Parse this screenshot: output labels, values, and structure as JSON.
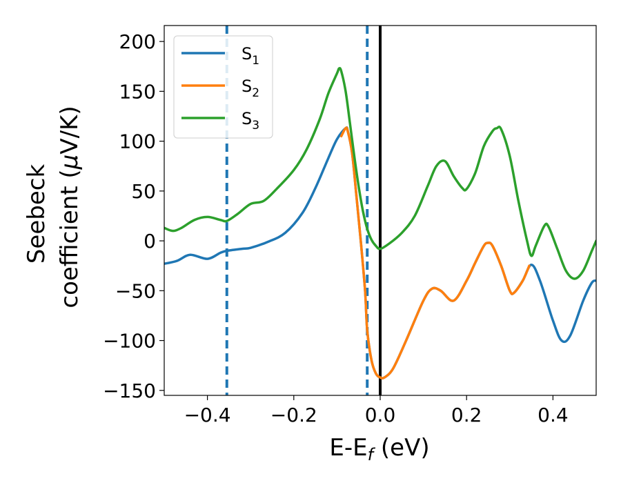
{
  "chart_data": {
    "type": "line",
    "xlabel_main": "E-E",
    "xlabel_sub": "f",
    "xlabel_unit": " (eV)",
    "ylabel_line1": "Seebeck",
    "ylabel_line2_pre": "coefficient  (",
    "ylabel_line2_mu": "μ",
    "ylabel_line2_post": "V/K)",
    "xlim": [
      -0.5,
      0.5
    ],
    "ylim": [
      -155,
      216
    ],
    "x_ticks": [
      -0.4,
      -0.2,
      0.0,
      0.2,
      0.4
    ],
    "x_tick_labels": [
      "−0.4",
      "−0.2",
      "0.0",
      "0.2",
      "0.4"
    ],
    "y_ticks": [
      -150,
      -100,
      -50,
      0,
      50,
      100,
      150,
      200
    ],
    "y_tick_labels": [
      "−150",
      "−100",
      "−50",
      "0",
      "50",
      "100",
      "150",
      "200"
    ],
    "grid": false,
    "legend_position": "top-left",
    "vertical_lines": [
      {
        "x": -0.355,
        "style": "dashed",
        "color": "#1f77b4"
      },
      {
        "x": -0.03,
        "style": "dashed",
        "color": "#1f77b4"
      },
      {
        "x": 0.0,
        "style": "solid",
        "color": "#000000"
      }
    ],
    "series": [
      {
        "name": "S",
        "name_sub": "1",
        "color": "#1f77b4",
        "points": [
          [
            -0.5,
            -23
          ],
          [
            -0.47,
            -20
          ],
          [
            -0.44,
            -14
          ],
          [
            -0.4,
            -18
          ],
          [
            -0.37,
            -12
          ],
          [
            -0.355,
            -10
          ],
          [
            -0.32,
            -8
          ],
          [
            -0.3,
            -7
          ],
          [
            -0.26,
            -1
          ],
          [
            -0.22,
            8
          ],
          [
            -0.18,
            28
          ],
          [
            -0.15,
            53
          ],
          [
            -0.12,
            83
          ],
          [
            -0.1,
            102
          ],
          [
            -0.08,
            113
          ],
          [
            -0.075,
            110
          ],
          [
            -0.065,
            88
          ],
          [
            -0.055,
            45
          ],
          [
            -0.045,
            0
          ],
          [
            -0.035,
            -50
          ],
          [
            -0.03,
            -90
          ],
          [
            -0.02,
            -120
          ],
          [
            -0.01,
            -133
          ],
          [
            0.0,
            -137
          ],
          [
            0.01,
            -137
          ],
          [
            0.03,
            -128
          ],
          [
            0.06,
            -100
          ],
          [
            0.1,
            -60
          ],
          [
            0.12,
            -48
          ],
          [
            0.14,
            -50
          ],
          [
            0.17,
            -60
          ],
          [
            0.2,
            -40
          ],
          [
            0.22,
            -22
          ],
          [
            0.24,
            -5
          ],
          [
            0.25,
            -2
          ],
          [
            0.26,
            -5
          ],
          [
            0.28,
            -25
          ],
          [
            0.3,
            -50
          ],
          [
            0.31,
            -52
          ],
          [
            0.33,
            -40
          ],
          [
            0.35,
            -24
          ],
          [
            0.37,
            -40
          ],
          [
            0.4,
            -80
          ],
          [
            0.42,
            -100
          ],
          [
            0.44,
            -95
          ],
          [
            0.47,
            -60
          ],
          [
            0.49,
            -42
          ],
          [
            0.5,
            -40
          ]
        ]
      },
      {
        "name": "S",
        "name_sub": "2",
        "color": "#ff7f0e",
        "points": [
          [
            -0.09,
            105
          ],
          [
            -0.08,
            113
          ],
          [
            -0.075,
            110
          ],
          [
            -0.065,
            88
          ],
          [
            -0.055,
            45
          ],
          [
            -0.045,
            0
          ],
          [
            -0.035,
            -50
          ],
          [
            -0.03,
            -90
          ],
          [
            -0.02,
            -120
          ],
          [
            -0.01,
            -133
          ],
          [
            0.0,
            -137
          ],
          [
            0.01,
            -137
          ],
          [
            0.03,
            -128
          ],
          [
            0.06,
            -100
          ],
          [
            0.1,
            -60
          ],
          [
            0.12,
            -48
          ],
          [
            0.14,
            -50
          ],
          [
            0.17,
            -60
          ],
          [
            0.2,
            -40
          ],
          [
            0.22,
            -22
          ],
          [
            0.24,
            -5
          ],
          [
            0.25,
            -2
          ],
          [
            0.26,
            -5
          ],
          [
            0.28,
            -25
          ],
          [
            0.3,
            -50
          ],
          [
            0.31,
            -52
          ],
          [
            0.33,
            -40
          ],
          [
            0.345,
            -25
          ]
        ]
      },
      {
        "name": "S",
        "name_sub": "3",
        "color": "#2ca02c",
        "points": [
          [
            -0.5,
            13
          ],
          [
            -0.48,
            10
          ],
          [
            -0.46,
            13
          ],
          [
            -0.43,
            21
          ],
          [
            -0.4,
            24
          ],
          [
            -0.37,
            21
          ],
          [
            -0.355,
            20
          ],
          [
            -0.33,
            27
          ],
          [
            -0.3,
            37
          ],
          [
            -0.27,
            40
          ],
          [
            -0.24,
            52
          ],
          [
            -0.2,
            71
          ],
          [
            -0.17,
            92
          ],
          [
            -0.14,
            122
          ],
          [
            -0.12,
            148
          ],
          [
            -0.1,
            168
          ],
          [
            -0.095,
            173
          ],
          [
            -0.09,
            170
          ],
          [
            -0.08,
            150
          ],
          [
            -0.07,
            118
          ],
          [
            -0.06,
            85
          ],
          [
            -0.05,
            55
          ],
          [
            -0.04,
            30
          ],
          [
            -0.03,
            12
          ],
          [
            -0.02,
            1
          ],
          [
            -0.01,
            -5
          ],
          [
            0.0,
            -8
          ],
          [
            0.02,
            -3
          ],
          [
            0.05,
            8
          ],
          [
            0.08,
            25
          ],
          [
            0.11,
            55
          ],
          [
            0.13,
            75
          ],
          [
            0.15,
            80
          ],
          [
            0.17,
            65
          ],
          [
            0.19,
            53
          ],
          [
            0.2,
            52
          ],
          [
            0.22,
            68
          ],
          [
            0.24,
            95
          ],
          [
            0.26,
            110
          ],
          [
            0.27,
            113
          ],
          [
            0.28,
            112
          ],
          [
            0.3,
            85
          ],
          [
            0.32,
            40
          ],
          [
            0.34,
            0
          ],
          [
            0.35,
            -15
          ],
          [
            0.36,
            -5
          ],
          [
            0.38,
            15
          ],
          [
            0.39,
            14
          ],
          [
            0.41,
            -8
          ],
          [
            0.43,
            -30
          ],
          [
            0.45,
            -38
          ],
          [
            0.47,
            -30
          ],
          [
            0.49,
            -10
          ],
          [
            0.5,
            0
          ]
        ]
      }
    ]
  }
}
